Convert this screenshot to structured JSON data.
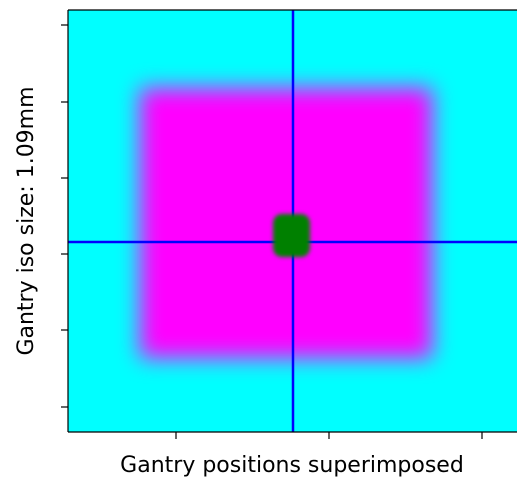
{
  "chart_data": {
    "type": "image",
    "xlabel": "Gantry positions superimposed",
    "ylabel": "Gantry iso size: 1.09mm",
    "background": "#00ffff",
    "field_color": "#ff00ff",
    "line_color": "#0000ff",
    "spot_color": "#008000"
  }
}
